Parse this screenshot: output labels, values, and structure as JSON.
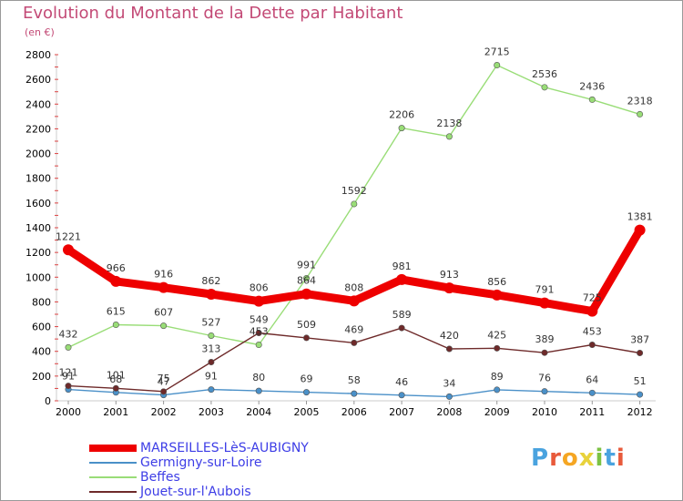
{
  "header": {
    "title": "Evolution du Montant de la Dette par Habitant",
    "subtitle": "(en €)"
  },
  "logo": {
    "text": "Proxiti",
    "colors": [
      "#4aa3df",
      "#e85a3b",
      "#f5a623",
      "#e8d23b",
      "#7cc243",
      "#4aa3df",
      "#e85a3b"
    ]
  },
  "chart_data": {
    "type": "line",
    "title": "Evolution du Montant de la Dette par Habitant",
    "subtitle": "(en €)",
    "xlabel": "",
    "ylabel": "",
    "ylim": [
      0,
      2800
    ],
    "yticks": [
      0,
      200,
      400,
      600,
      800,
      1000,
      1200,
      1400,
      1600,
      1800,
      2000,
      2200,
      2400,
      2600,
      2800
    ],
    "categories": [
      "2000",
      "2001",
      "2002",
      "2003",
      "2004",
      "2005",
      "2006",
      "2007",
      "2008",
      "2009",
      "2010",
      "2011",
      "2012"
    ],
    "grid": false,
    "legend_position": "bottom-left",
    "series": [
      {
        "name": "Germigny-sur-Loire",
        "color": "#4a90c8",
        "values": [
          91,
          68,
          47,
          91,
          80,
          69,
          58,
          46,
          34,
          89,
          76,
          64,
          51
        ]
      },
      {
        "name": "Beffes",
        "color": "#99dd77",
        "values": [
          432,
          615,
          607,
          527,
          453,
          991,
          1592,
          2206,
          2138,
          2715,
          2536,
          2436,
          2318
        ]
      },
      {
        "name": "Jouet-sur-l'Aubois",
        "color": "#6e2a2a",
        "values": [
          121,
          101,
          75,
          313,
          549,
          509,
          469,
          589,
          420,
          425,
          389,
          453,
          387
        ]
      },
      {
        "name": "MARSEILLES-LèS-AUBIGNY",
        "color": "#ee0000",
        "values": [
          1221,
          966,
          916,
          862,
          806,
          864,
          808,
          981,
          913,
          856,
          791,
          725,
          1381
        ]
      }
    ]
  }
}
